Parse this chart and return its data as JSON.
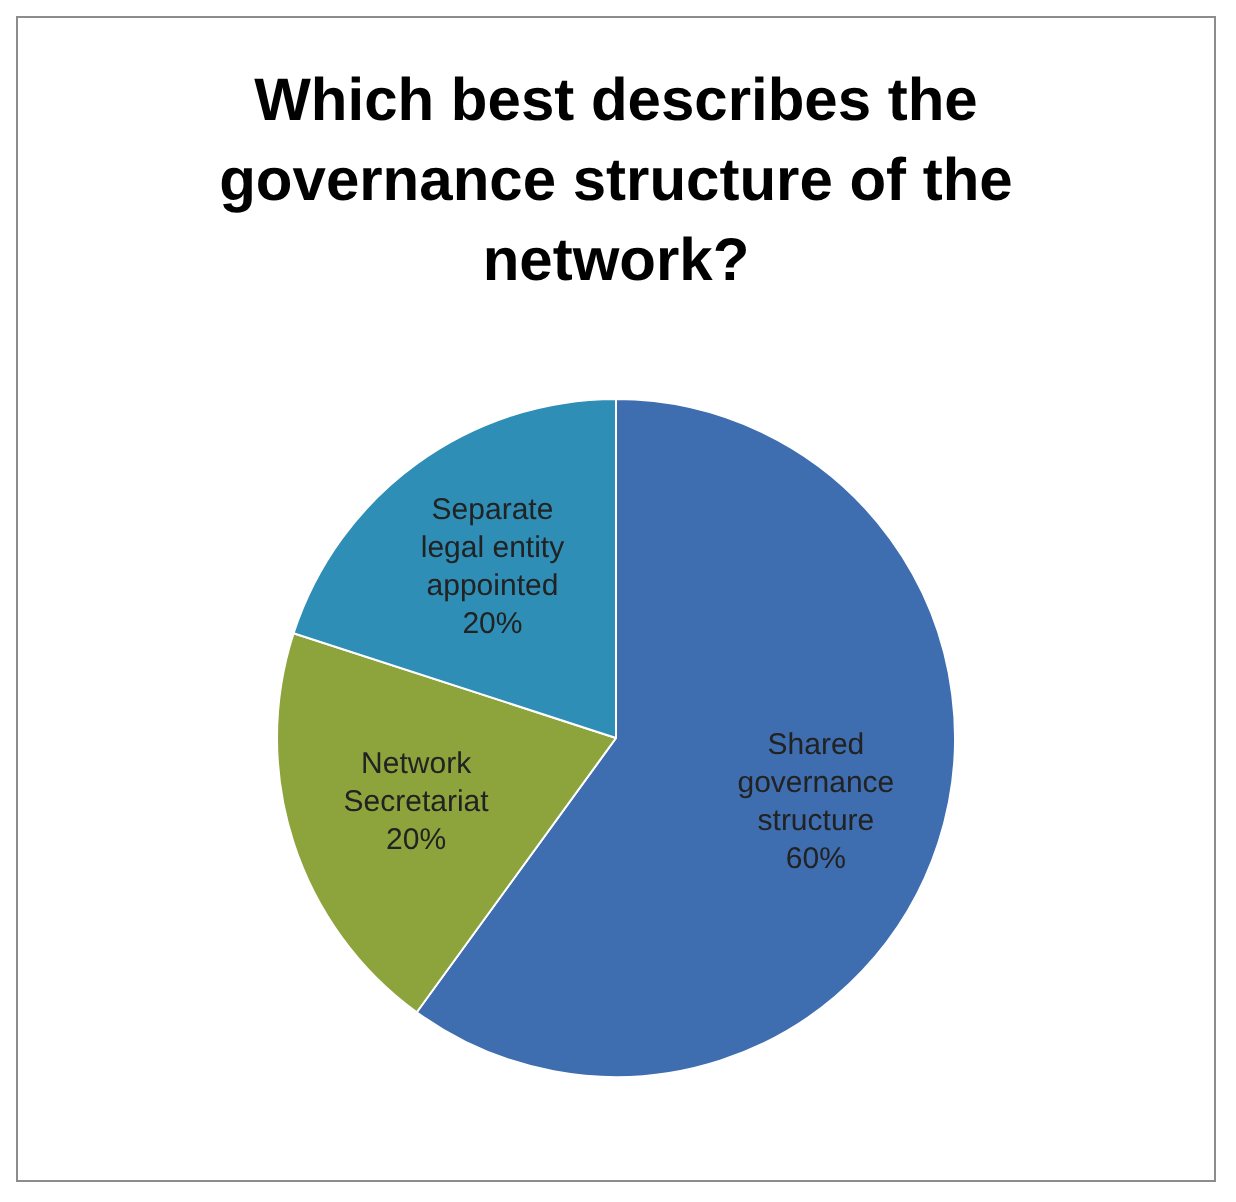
{
  "chart_data": {
    "type": "pie",
    "title": "Which best describes the governance structure of the network?",
    "categories": [
      "Shared governance structure",
      "Network Secretariat",
      "Separate legal entity appointed"
    ],
    "values": [
      60,
      20,
      20
    ],
    "value_labels": [
      "60%",
      "20%",
      "20%"
    ],
    "colors": [
      "#3e6db0",
      "#8da43c",
      "#2e8eb6"
    ],
    "legend": false
  }
}
